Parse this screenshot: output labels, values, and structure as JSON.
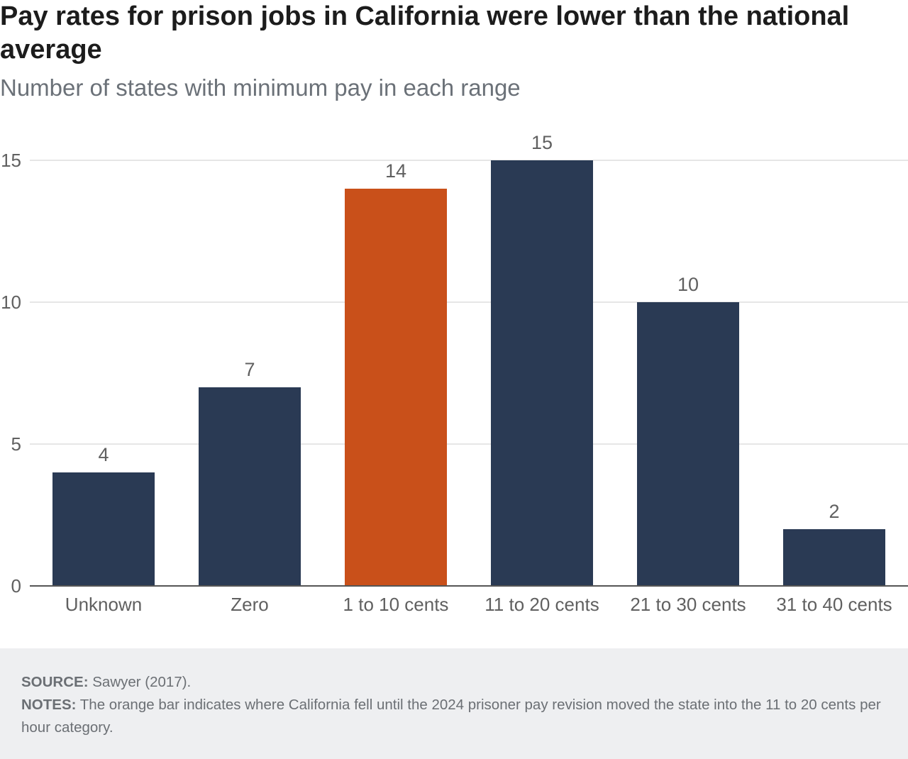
{
  "title": "Pay rates for prison jobs in California were lower than the national average",
  "subtitle": "Number of states with minimum pay in each range",
  "footer": {
    "source_label": "SOURCE:",
    "source_text": " Sawyer (2017).",
    "notes_label": "NOTES:",
    "notes_text": " The orange bar indicates where California fell until the 2024 prisoner pay revision moved the state into the 11 to 20 cents per hour category."
  },
  "colors": {
    "bar": "#2a3a54",
    "highlight": "#c9501a",
    "grid": "#dddddd",
    "axis": "#555555",
    "text": "#606060"
  },
  "chart_data": {
    "type": "bar",
    "title": "Pay rates for prison jobs in California were lower than the national average",
    "subtitle": "Number of states with minimum pay in each range",
    "categories": [
      "Unknown",
      "Zero",
      "1 to 10 cents",
      "11 to 20 cents",
      "21 to 30 cents",
      "31 to 40 cents"
    ],
    "values": [
      4,
      7,
      14,
      15,
      10,
      2
    ],
    "highlight_index": 2,
    "ylim": [
      0,
      15
    ],
    "yticks": [
      0,
      5,
      10,
      15
    ],
    "xlabel": "",
    "ylabel": "",
    "grid": true,
    "data_labels": true,
    "legend": "none"
  }
}
